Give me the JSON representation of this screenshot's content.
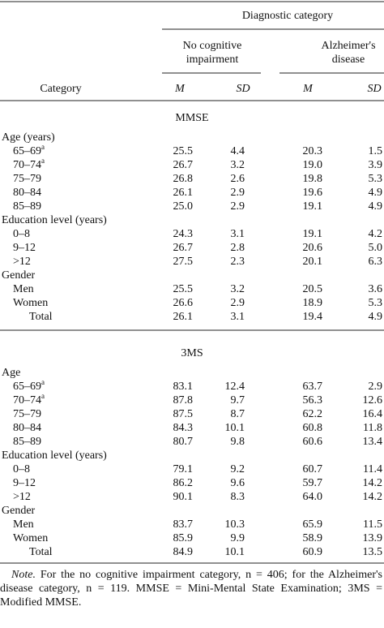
{
  "header": {
    "spanner": "Diagnostic category",
    "groups": [
      {
        "label": [
          "No cognitive",
          "impairment"
        ]
      },
      {
        "label": [
          "Alzheimer's",
          "disease"
        ]
      }
    ],
    "stub": "Category",
    "columns": [
      "M",
      "SD",
      "M",
      "SD"
    ]
  },
  "sections": [
    {
      "title": "MMSE",
      "groups": [
        {
          "label": "Age (years)",
          "rows": [
            {
              "label": "65–69",
              "note": "a",
              "values": [
                "25.5",
                "4.4",
                "20.3",
                "1.5"
              ]
            },
            {
              "label": "70–74",
              "note": "a",
              "values": [
                "26.7",
                "3.2",
                "19.0",
                "3.9"
              ]
            },
            {
              "label": "75–79",
              "values": [
                "26.8",
                "2.6",
                "19.8",
                "5.3"
              ]
            },
            {
              "label": "80–84",
              "values": [
                "26.1",
                "2.9",
                "19.6",
                "4.9"
              ]
            },
            {
              "label": "85–89",
              "values": [
                "25.0",
                "2.9",
                "19.1",
                "4.9"
              ]
            }
          ]
        },
        {
          "label": "Education level (years)",
          "rows": [
            {
              "label": "0–8",
              "values": [
                "24.3",
                "3.1",
                "19.1",
                "4.2"
              ]
            },
            {
              "label": "9–12",
              "values": [
                "26.7",
                "2.8",
                "20.6",
                "5.0"
              ]
            },
            {
              "label": ">12",
              "values": [
                "27.5",
                "2.3",
                "20.1",
                "6.3"
              ]
            }
          ]
        },
        {
          "label": "Gender",
          "rows": [
            {
              "label": "Men",
              "values": [
                "25.5",
                "3.2",
                "20.5",
                "3.6"
              ]
            },
            {
              "label": "Women",
              "values": [
                "26.6",
                "2.9",
                "18.9",
                "5.3"
              ]
            }
          ]
        }
      ],
      "total": {
        "label": "Total",
        "values": [
          "26.1",
          "3.1",
          "19.4",
          "4.9"
        ]
      }
    },
    {
      "title": "3MS",
      "groups": [
        {
          "label": "Age",
          "rows": [
            {
              "label": "65–69",
              "note": "a",
              "values": [
                "83.1",
                "12.4",
                "63.7",
                "2.9"
              ]
            },
            {
              "label": "70–74",
              "note": "a",
              "values": [
                "87.8",
                "9.7",
                "56.3",
                "12.6"
              ]
            },
            {
              "label": "75–79",
              "values": [
                "87.5",
                "8.7",
                "62.2",
                "16.4"
              ]
            },
            {
              "label": "80–84",
              "values": [
                "84.3",
                "10.1",
                "60.8",
                "11.8"
              ]
            },
            {
              "label": "85–89",
              "values": [
                "80.7",
                "9.8",
                "60.6",
                "13.4"
              ]
            }
          ]
        },
        {
          "label": "Education level (years)",
          "rows": [
            {
              "label": "0–8",
              "values": [
                "79.1",
                "9.2",
                "60.7",
                "11.4"
              ]
            },
            {
              "label": "9–12",
              "values": [
                "86.2",
                "9.6",
                "59.7",
                "14.2"
              ]
            },
            {
              "label": ">12",
              "values": [
                "90.1",
                "8.3",
                "64.0",
                "14.2"
              ]
            }
          ]
        },
        {
          "label": "Gender",
          "rows": [
            {
              "label": "Men",
              "values": [
                "83.7",
                "10.3",
                "65.9",
                "11.5"
              ]
            },
            {
              "label": "Women",
              "values": [
                "85.9",
                "9.9",
                "58.9",
                "13.9"
              ]
            }
          ]
        }
      ],
      "total": {
        "label": "Total",
        "values": [
          "84.9",
          "10.1",
          "60.9",
          "13.5"
        ]
      }
    }
  ],
  "note": {
    "label": "Note.",
    "text": "For the no cognitive impairment category, n = 406; for the Alzheimer's disease category, n = 119. MMSE = Mini-Mental State Examination; 3MS = Modified MMSE."
  }
}
